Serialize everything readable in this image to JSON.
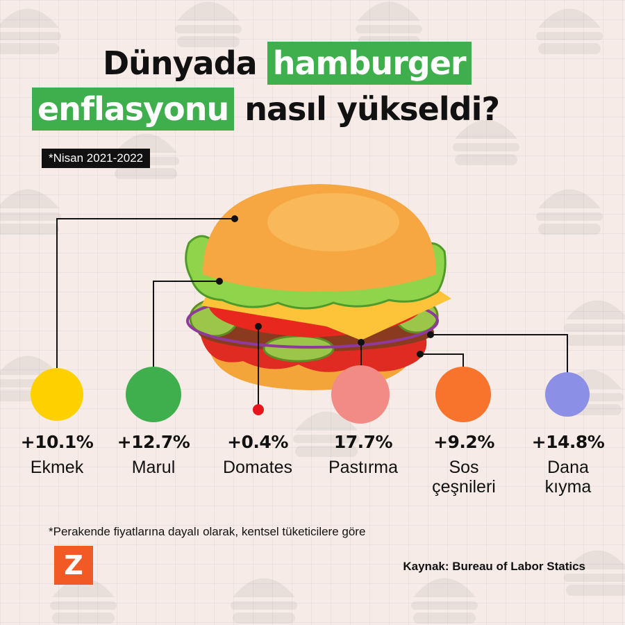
{
  "title": {
    "part1": "Dünyada",
    "part1_hl": "hamburger",
    "part2_hl": "enflasyonu",
    "part2": "nasıl yükseldi?"
  },
  "period": "*Nisan 2021-2022",
  "chart_data": {
    "type": "table",
    "categories": [
      "Ekmek",
      "Marul",
      "Domates",
      "Pastırma",
      "Sos çeşnileri",
      "Dana kıyma"
    ],
    "values": [
      10.1,
      12.7,
      0.4,
      17.7,
      9.2,
      14.8
    ],
    "value_labels": [
      "+10.1%",
      "+12.7%",
      "+0.4%",
      "17.7%",
      "+9.2%",
      "+14.8%"
    ],
    "label_lines": [
      [
        "Ekmek"
      ],
      [
        "Marul"
      ],
      [
        "Domates"
      ],
      [
        "Pastırma"
      ],
      [
        "Sos",
        "çeşnileri"
      ],
      [
        "Dana",
        "kıyma"
      ]
    ],
    "colors": [
      "#ffd000",
      "#3fae4c",
      "#e8141b",
      "#f28b85",
      "#f8732c",
      "#8b90e6"
    ]
  },
  "footnote": "*Perakende fiyatlarına dayalı olarak, kentsel tüketicilere göre",
  "logo_letter": "Z",
  "source": "Kaynak: Bureau of Labor Statics"
}
